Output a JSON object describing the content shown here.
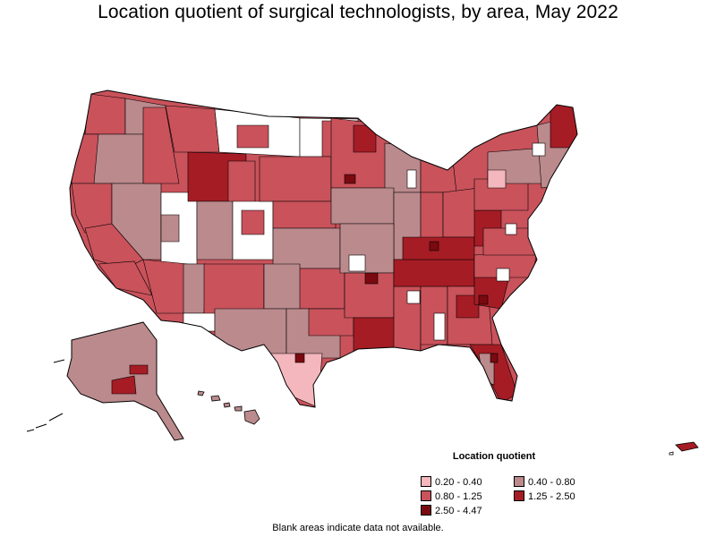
{
  "title": "Location quotient of surgical technologists, by area, May 2022",
  "legend": {
    "title": "Location quotient",
    "items": [
      {
        "label": "0.20 - 0.40",
        "color": "#f4b7bd"
      },
      {
        "label": "0.40 - 0.80",
        "color": "#bb8a8d"
      },
      {
        "label": "0.80 - 1.25",
        "color": "#c9525b"
      },
      {
        "label": "1.25 - 2.50",
        "color": "#a61c25"
      },
      {
        "label": "2.50 - 4.47",
        "color": "#7a0a10"
      }
    ]
  },
  "note": "Blank areas indicate data not available.",
  "colors": {
    "no_data": "#ffffff",
    "border": "#000000"
  }
}
